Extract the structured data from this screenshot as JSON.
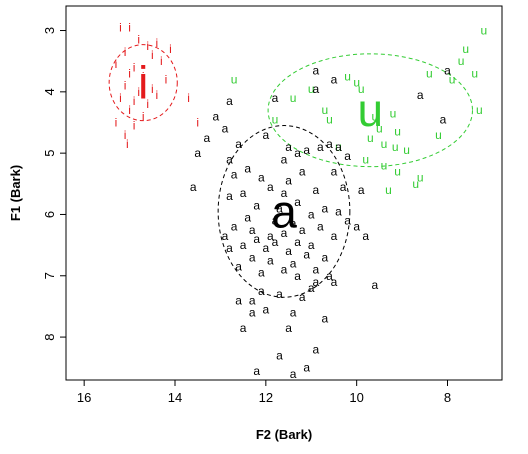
{
  "chart_data": {
    "type": "scatter",
    "title": "",
    "xlabel": "F2 (Bark)",
    "ylabel": "F1 (Bark)",
    "xlim": [
      16.4,
      6.8
    ],
    "ylim": [
      2.6,
      8.7
    ],
    "x_reversed": true,
    "y_reversed": true,
    "xticks": [
      16,
      14,
      12,
      10,
      8
    ],
    "yticks": [
      3,
      4,
      5,
      6,
      7,
      8
    ],
    "grid": false,
    "legend": "none",
    "series": [
      {
        "label": "i",
        "color": "#e41a1c",
        "centroid": {
          "x": 14.7,
          "y": 3.85
        },
        "ellipse": {
          "rx": 0.75,
          "ry": 0.62
        },
        "points": [
          {
            "x": 15.2,
            "y": 2.95
          },
          {
            "x": 15.0,
            "y": 2.95
          },
          {
            "x": 14.8,
            "y": 3.15
          },
          {
            "x": 14.6,
            "y": 3.25
          },
          {
            "x": 14.4,
            "y": 3.2
          },
          {
            "x": 14.1,
            "y": 3.3
          },
          {
            "x": 15.1,
            "y": 3.35
          },
          {
            "x": 14.5,
            "y": 3.4
          },
          {
            "x": 14.3,
            "y": 3.5
          },
          {
            "x": 15.3,
            "y": 3.55
          },
          {
            "x": 14.9,
            "y": 3.6
          },
          {
            "x": 15.0,
            "y": 3.7
          },
          {
            "x": 14.7,
            "y": 3.75
          },
          {
            "x": 14.2,
            "y": 3.8
          },
          {
            "x": 15.1,
            "y": 3.9
          },
          {
            "x": 14.8,
            "y": 4.0
          },
          {
            "x": 14.5,
            "y": 3.95
          },
          {
            "x": 14.4,
            "y": 4.05
          },
          {
            "x": 15.2,
            "y": 4.1
          },
          {
            "x": 14.9,
            "y": 4.15
          },
          {
            "x": 14.6,
            "y": 4.2
          },
          {
            "x": 15.0,
            "y": 4.3
          },
          {
            "x": 14.7,
            "y": 4.4
          },
          {
            "x": 15.3,
            "y": 4.5
          },
          {
            "x": 14.9,
            "y": 4.55
          },
          {
            "x": 15.1,
            "y": 4.7
          },
          {
            "x": 15.05,
            "y": 4.85
          },
          {
            "x": 13.7,
            "y": 4.1
          },
          {
            "x": 13.5,
            "y": 4.5
          }
        ]
      },
      {
        "label": "u",
        "color": "#33cc33",
        "centroid": {
          "x": 9.7,
          "y": 4.3
        },
        "ellipse": {
          "rx": 2.25,
          "ry": 0.92
        },
        "points": [
          {
            "x": 7.2,
            "y": 3.0
          },
          {
            "x": 7.6,
            "y": 3.3
          },
          {
            "x": 7.7,
            "y": 3.5
          },
          {
            "x": 7.4,
            "y": 3.7
          },
          {
            "x": 7.9,
            "y": 3.8
          },
          {
            "x": 8.4,
            "y": 3.7
          },
          {
            "x": 10.2,
            "y": 3.75
          },
          {
            "x": 11.0,
            "y": 3.95
          },
          {
            "x": 12.7,
            "y": 3.8
          },
          {
            "x": 10.0,
            "y": 3.85
          },
          {
            "x": 9.9,
            "y": 3.95
          },
          {
            "x": 11.4,
            "y": 4.1
          },
          {
            "x": 10.7,
            "y": 4.3
          },
          {
            "x": 10.6,
            "y": 4.45
          },
          {
            "x": 11.8,
            "y": 4.45
          },
          {
            "x": 9.2,
            "y": 4.35
          },
          {
            "x": 9.6,
            "y": 4.4
          },
          {
            "x": 9.5,
            "y": 4.6
          },
          {
            "x": 9.1,
            "y": 4.65
          },
          {
            "x": 9.7,
            "y": 4.75
          },
          {
            "x": 9.4,
            "y": 4.85
          },
          {
            "x": 9.15,
            "y": 4.9
          },
          {
            "x": 10.4,
            "y": 4.9
          },
          {
            "x": 8.9,
            "y": 4.95
          },
          {
            "x": 9.8,
            "y": 5.1
          },
          {
            "x": 9.4,
            "y": 5.2
          },
          {
            "x": 9.1,
            "y": 5.3
          },
          {
            "x": 8.6,
            "y": 5.4
          },
          {
            "x": 8.7,
            "y": 5.5
          },
          {
            "x": 9.3,
            "y": 5.6
          },
          {
            "x": 7.3,
            "y": 4.3
          },
          {
            "x": 8.2,
            "y": 4.7
          }
        ]
      },
      {
        "label": "a",
        "color": "#000000",
        "centroid": {
          "x": 11.6,
          "y": 5.95
        },
        "ellipse": {
          "rx": 1.45,
          "ry": 1.4
        },
        "points": [
          {
            "x": 10.9,
            "y": 3.65
          },
          {
            "x": 10.5,
            "y": 3.8
          },
          {
            "x": 10.9,
            "y": 3.95
          },
          {
            "x": 11.8,
            "y": 4.1
          },
          {
            "x": 8.0,
            "y": 3.65
          },
          {
            "x": 8.6,
            "y": 4.05
          },
          {
            "x": 12.8,
            "y": 4.15
          },
          {
            "x": 13.1,
            "y": 4.4
          },
          {
            "x": 8.1,
            "y": 4.45
          },
          {
            "x": 12.9,
            "y": 4.6
          },
          {
            "x": 13.3,
            "y": 4.75
          },
          {
            "x": 12.6,
            "y": 4.85
          },
          {
            "x": 12.0,
            "y": 4.7
          },
          {
            "x": 11.5,
            "y": 4.9
          },
          {
            "x": 11.3,
            "y": 5.0
          },
          {
            "x": 11.1,
            "y": 4.95
          },
          {
            "x": 10.8,
            "y": 4.9
          },
          {
            "x": 10.6,
            "y": 4.85
          },
          {
            "x": 10.4,
            "y": 4.9
          },
          {
            "x": 10.2,
            "y": 5.05
          },
          {
            "x": 11.6,
            "y": 5.1
          },
          {
            "x": 12.8,
            "y": 5.1
          },
          {
            "x": 13.5,
            "y": 5.0
          },
          {
            "x": 12.4,
            "y": 5.25
          },
          {
            "x": 12.7,
            "y": 5.35
          },
          {
            "x": 11.2,
            "y": 5.3
          },
          {
            "x": 10.5,
            "y": 5.3
          },
          {
            "x": 12.1,
            "y": 5.4
          },
          {
            "x": 11.5,
            "y": 5.45
          },
          {
            "x": 11.9,
            "y": 5.55
          },
          {
            "x": 13.6,
            "y": 5.55
          },
          {
            "x": 12.5,
            "y": 5.65
          },
          {
            "x": 11.6,
            "y": 5.65
          },
          {
            "x": 10.9,
            "y": 5.6
          },
          {
            "x": 10.3,
            "y": 5.55
          },
          {
            "x": 9.9,
            "y": 5.6
          },
          {
            "x": 12.8,
            "y": 5.7
          },
          {
            "x": 11.3,
            "y": 5.8
          },
          {
            "x": 11.7,
            "y": 5.9
          },
          {
            "x": 12.2,
            "y": 5.85
          },
          {
            "x": 10.7,
            "y": 5.9
          },
          {
            "x": 10.4,
            "y": 5.95
          },
          {
            "x": 11.0,
            "y": 6.0
          },
          {
            "x": 12.4,
            "y": 6.05
          },
          {
            "x": 11.8,
            "y": 6.1
          },
          {
            "x": 10.2,
            "y": 6.1
          },
          {
            "x": 12.7,
            "y": 6.2
          },
          {
            "x": 11.4,
            "y": 6.15
          },
          {
            "x": 11.2,
            "y": 6.25
          },
          {
            "x": 10.8,
            "y": 6.2
          },
          {
            "x": 10.0,
            "y": 6.2
          },
          {
            "x": 12.3,
            "y": 6.25
          },
          {
            "x": 11.6,
            "y": 6.3
          },
          {
            "x": 11.9,
            "y": 6.35
          },
          {
            "x": 12.9,
            "y": 6.35
          },
          {
            "x": 10.5,
            "y": 6.35
          },
          {
            "x": 9.8,
            "y": 6.35
          },
          {
            "x": 12.2,
            "y": 6.4
          },
          {
            "x": 11.8,
            "y": 6.45
          },
          {
            "x": 11.3,
            "y": 6.45
          },
          {
            "x": 11.0,
            "y": 6.5
          },
          {
            "x": 12.5,
            "y": 6.5
          },
          {
            "x": 12.8,
            "y": 6.55
          },
          {
            "x": 12.0,
            "y": 6.55
          },
          {
            "x": 11.5,
            "y": 6.6
          },
          {
            "x": 11.1,
            "y": 6.65
          },
          {
            "x": 10.7,
            "y": 6.7
          },
          {
            "x": 12.3,
            "y": 6.7
          },
          {
            "x": 11.9,
            "y": 6.75
          },
          {
            "x": 11.4,
            "y": 6.8
          },
          {
            "x": 12.6,
            "y": 6.85
          },
          {
            "x": 11.6,
            "y": 6.9
          },
          {
            "x": 10.9,
            "y": 6.9
          },
          {
            "x": 12.1,
            "y": 6.95
          },
          {
            "x": 11.3,
            "y": 7.0
          },
          {
            "x": 10.6,
            "y": 7.0
          },
          {
            "x": 10.9,
            "y": 7.1
          },
          {
            "x": 10.5,
            "y": 7.1
          },
          {
            "x": 11.0,
            "y": 7.2
          },
          {
            "x": 12.1,
            "y": 7.25
          },
          {
            "x": 11.7,
            "y": 7.3
          },
          {
            "x": 11.2,
            "y": 7.35
          },
          {
            "x": 9.6,
            "y": 7.15
          },
          {
            "x": 12.3,
            "y": 7.4
          },
          {
            "x": 12.6,
            "y": 7.4
          },
          {
            "x": 12.0,
            "y": 7.55
          },
          {
            "x": 12.3,
            "y": 7.6
          },
          {
            "x": 11.4,
            "y": 7.6
          },
          {
            "x": 10.7,
            "y": 7.7
          },
          {
            "x": 12.5,
            "y": 7.85
          },
          {
            "x": 11.5,
            "y": 7.85
          },
          {
            "x": 10.9,
            "y": 8.2
          },
          {
            "x": 11.7,
            "y": 8.3
          },
          {
            "x": 11.1,
            "y": 8.5
          },
          {
            "x": 12.2,
            "y": 8.55
          },
          {
            "x": 11.4,
            "y": 8.6
          }
        ]
      }
    ]
  }
}
